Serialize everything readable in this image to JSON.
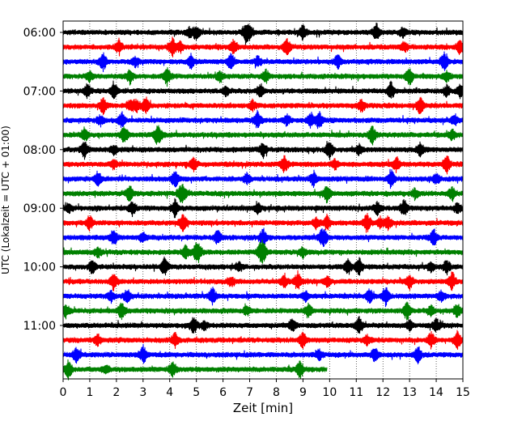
{
  "chart_data": {
    "type": "line",
    "title": "",
    "xlabel": "Zeit  [min]",
    "ylabel": "UTC (Lokalzeit = UTC + 01:00)",
    "xlim": [
      0,
      15
    ],
    "x_ticks": [
      0,
      1,
      2,
      3,
      4,
      5,
      6,
      7,
      8,
      9,
      10,
      11,
      12,
      13,
      14,
      15
    ],
    "x_grid": true,
    "y_grid": false,
    "legend": "none",
    "y_ticks": [
      {
        "label": "06:00",
        "row": 0
      },
      {
        "label": "07:00",
        "row": 4
      },
      {
        "label": "08:00",
        "row": 8
      },
      {
        "label": "09:00",
        "row": 12
      },
      {
        "label": "10:00",
        "row": 16
      },
      {
        "label": "11:00",
        "row": 20
      }
    ],
    "row_colors": [
      "#000000",
      "#ff0000",
      "#0000ff",
      "#008000"
    ],
    "series": [
      {
        "start": "06:00",
        "color": "#000000",
        "end_min": 15,
        "events": [
          4.75,
          5.0,
          6.85,
          7.0,
          9.0,
          11.75,
          12.75
        ]
      },
      {
        "start": "06:15",
        "color": "#ff0000",
        "end_min": 15,
        "events": [
          2.1,
          4.1,
          4.4,
          6.4,
          8.4,
          12.8,
          14.9
        ]
      },
      {
        "start": "06:30",
        "color": "#0000ff",
        "end_min": 15,
        "events": [
          1.5,
          2.7,
          4.8,
          6.3,
          7.3,
          10.3,
          14.3
        ]
      },
      {
        "start": "06:45",
        "color": "#008000",
        "end_min": 15,
        "events": [
          1.0,
          2.5,
          3.9,
          5.9,
          7.6,
          13.0,
          14.4
        ]
      },
      {
        "start": "07:00",
        "color": "#000000",
        "end_min": 15,
        "events": [
          0.9,
          1.9,
          6.1,
          7.4,
          12.3,
          14.4,
          14.9
        ]
      },
      {
        "start": "07:15",
        "color": "#ff0000",
        "end_min": 15,
        "events": [
          1.5,
          2.5,
          2.75,
          3.1,
          7.1,
          11.2,
          13.4
        ]
      },
      {
        "start": "07:30",
        "color": "#0000ff",
        "end_min": 15,
        "events": [
          1.4,
          2.2,
          7.3,
          8.4,
          9.3,
          9.6,
          14.7
        ]
      },
      {
        "start": "07:45",
        "color": "#008000",
        "end_min": 15,
        "events": [
          0.8,
          2.3,
          3.5,
          3.6,
          11.6,
          14.6
        ]
      },
      {
        "start": "08:00",
        "color": "#000000",
        "end_min": 15,
        "events": [
          0.8,
          1.9,
          7.5,
          10.0,
          11.1,
          13.4
        ]
      },
      {
        "start": "08:15",
        "color": "#ff0000",
        "end_min": 15,
        "events": [
          1.9,
          4.9,
          8.3,
          10.2,
          12.5,
          14.4
        ]
      },
      {
        "start": "08:30",
        "color": "#0000ff",
        "end_min": 15,
        "events": [
          1.3,
          4.2,
          6.9,
          9.4,
          12.3,
          14.0
        ]
      },
      {
        "start": "08:45",
        "color": "#008000",
        "end_min": 15,
        "events": [
          2.5,
          4.4,
          4.5,
          9.9,
          13.2,
          14.6
        ]
      },
      {
        "start": "09:00",
        "color": "#000000",
        "end_min": 15,
        "events": [
          0.2,
          2.6,
          4.2,
          7.3,
          11.8,
          12.8,
          14.8
        ]
      },
      {
        "start": "09:15",
        "color": "#ff0000",
        "end_min": 15,
        "events": [
          1.0,
          4.5,
          9.5,
          9.9,
          11.4,
          11.9,
          12.2
        ]
      },
      {
        "start": "09:30",
        "color": "#0000ff",
        "end_min": 15,
        "events": [
          1.9,
          3.0,
          5.8,
          7.5,
          9.7,
          9.8,
          13.9
        ]
      },
      {
        "start": "09:45",
        "color": "#008000",
        "end_min": 15,
        "events": [
          1.3,
          4.6,
          5.0,
          5.1,
          7.4,
          7.5,
          9.0
        ]
      },
      {
        "start": "10:00",
        "color": "#000000",
        "end_min": 15,
        "events": [
          1.1,
          3.8,
          6.6,
          10.7,
          11.1,
          13.8,
          14.4
        ]
      },
      {
        "start": "10:15",
        "color": "#ff0000",
        "end_min": 15,
        "events": [
          1.9,
          6.3,
          8.3,
          8.8,
          9.9,
          13.0,
          14.6
        ]
      },
      {
        "start": "10:30",
        "color": "#0000ff",
        "end_min": 15,
        "events": [
          1.8,
          2.4,
          5.6,
          9.1,
          11.5,
          12.1,
          14.2
        ]
      },
      {
        "start": "10:45",
        "color": "#008000",
        "end_min": 15,
        "events": [
          0.1,
          2.2,
          6.9,
          9.2,
          12.9,
          13.8,
          14.8
        ]
      },
      {
        "start": "11:00",
        "color": "#000000",
        "end_min": 15,
        "events": [
          4.9,
          5.3,
          8.6,
          11.1,
          13.0,
          14.0
        ]
      },
      {
        "start": "11:15",
        "color": "#ff0000",
        "end_min": 15,
        "events": [
          1.3,
          4.2,
          9.0,
          11.4,
          13.8,
          14.8
        ]
      },
      {
        "start": "11:30",
        "color": "#0000ff",
        "end_min": 15,
        "events": [
          0.5,
          3.0,
          9.6,
          11.7,
          13.3
        ]
      },
      {
        "start": "11:45",
        "color": "#008000",
        "end_min": 9.9,
        "events": [
          0.2,
          1.6,
          4.1,
          8.9
        ]
      }
    ]
  }
}
